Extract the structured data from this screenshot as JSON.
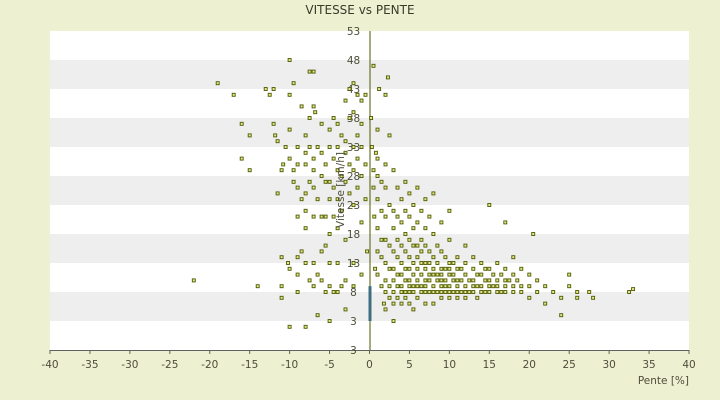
{
  "chart_data": {
    "type": "scatter",
    "title": "VITESSE vs PENTE",
    "xlabel": "Pente [%]",
    "ylabel": "Vitesse [km/h]",
    "xlim": [
      -40,
      40
    ],
    "ylim": [
      -2,
      53
    ],
    "x_ticks": [
      "-40",
      "-35",
      "-30",
      "-25",
      "-20",
      "-15",
      "-10",
      "-5",
      "0",
      "5",
      "10",
      "15",
      "20",
      "25",
      "30",
      "35",
      "40"
    ],
    "y_ticks": [
      "3",
      "3",
      "8",
      "13",
      "18",
      "23",
      "28",
      "33",
      "38",
      "43",
      "48",
      "53"
    ],
    "grid": "horizontal bands",
    "colors": {
      "marker_fill": "#e6e68a",
      "marker_edge": "#4d5a00",
      "band": "#eeeeee",
      "plot_bg": "#ffffff",
      "page_bg": "#eef0d2",
      "zero_axis": "#4d5a00",
      "bar": "#3e6f80"
    },
    "points": [
      [
        -22,
        10
      ],
      [
        -19,
        44
      ],
      [
        -17,
        42
      ],
      [
        -16,
        37
      ],
      [
        -16,
        31
      ],
      [
        -15,
        35
      ],
      [
        -15,
        29
      ],
      [
        -14,
        9
      ],
      [
        -13,
        43
      ],
      [
        -12.5,
        42
      ],
      [
        -12,
        43
      ],
      [
        -12,
        37
      ],
      [
        -11.8,
        35
      ],
      [
        -11.5,
        34
      ],
      [
        -11.5,
        25
      ],
      [
        -11,
        29
      ],
      [
        -11,
        14
      ],
      [
        -11,
        9
      ],
      [
        -11,
        7
      ],
      [
        -10.8,
        30
      ],
      [
        -10.5,
        33
      ],
      [
        -10.2,
        13
      ],
      [
        -10,
        48
      ],
      [
        -10,
        42
      ],
      [
        -10,
        36
      ],
      [
        -10,
        31
      ],
      [
        -10,
        12
      ],
      [
        -10,
        2
      ],
      [
        -9.5,
        44
      ],
      [
        -9.5,
        29
      ],
      [
        -9.5,
        27
      ],
      [
        -9,
        33
      ],
      [
        -9,
        30
      ],
      [
        -9,
        26
      ],
      [
        -9,
        21
      ],
      [
        -9,
        14
      ],
      [
        -9,
        11
      ],
      [
        -9,
        8
      ],
      [
        -8.5,
        40
      ],
      [
        -8.5,
        24
      ],
      [
        -8.5,
        15
      ],
      [
        -8,
        35
      ],
      [
        -8,
        32
      ],
      [
        -8,
        30
      ],
      [
        -8,
        25
      ],
      [
        -8,
        22
      ],
      [
        -8,
        19
      ],
      [
        -8,
        13
      ],
      [
        -8,
        2
      ],
      [
        -7.5,
        46
      ],
      [
        -7.5,
        38
      ],
      [
        -7.5,
        33
      ],
      [
        -7.5,
        27
      ],
      [
        -7.5,
        10
      ],
      [
        -7,
        46
      ],
      [
        -7,
        40
      ],
      [
        -7,
        31
      ],
      [
        -7,
        29
      ],
      [
        -7,
        26
      ],
      [
        -7,
        21
      ],
      [
        -7,
        13
      ],
      [
        -7,
        9
      ],
      [
        -6.8,
        39
      ],
      [
        -6.5,
        33
      ],
      [
        -6.5,
        24
      ],
      [
        -6.5,
        11
      ],
      [
        -6.5,
        4
      ],
      [
        -6,
        37
      ],
      [
        -6,
        32
      ],
      [
        -6,
        28
      ],
      [
        -6,
        21
      ],
      [
        -6,
        15
      ],
      [
        -6,
        10
      ],
      [
        -5.5,
        30
      ],
      [
        -5.5,
        27
      ],
      [
        -5.5,
        21
      ],
      [
        -5.5,
        16
      ],
      [
        -5.5,
        8
      ],
      [
        -5,
        36
      ],
      [
        -5,
        33
      ],
      [
        -5,
        27
      ],
      [
        -5,
        24
      ],
      [
        -5,
        18
      ],
      [
        -5,
        13
      ],
      [
        -5,
        9
      ],
      [
        -5,
        3
      ],
      [
        -4.5,
        38
      ],
      [
        -4.5,
        31
      ],
      [
        -4.5,
        26
      ],
      [
        -4.5,
        21
      ],
      [
        -4.5,
        8
      ],
      [
        -4,
        37
      ],
      [
        -4,
        33
      ],
      [
        -4,
        29
      ],
      [
        -4,
        24
      ],
      [
        -4,
        19
      ],
      [
        -4,
        13
      ],
      [
        -4,
        8
      ],
      [
        -3.5,
        35
      ],
      [
        -3.5,
        28
      ],
      [
        -3.5,
        22
      ],
      [
        -3.5,
        9
      ],
      [
        -3,
        41
      ],
      [
        -3,
        34
      ],
      [
        -3,
        32
      ],
      [
        -3,
        27
      ],
      [
        -3,
        17
      ],
      [
        -3,
        10
      ],
      [
        -3,
        5
      ],
      [
        -2.5,
        43
      ],
      [
        -2.5,
        38
      ],
      [
        -2.5,
        30
      ],
      [
        -2.5,
        25
      ],
      [
        -2,
        44
      ],
      [
        -2,
        39
      ],
      [
        -2,
        33
      ],
      [
        -2,
        29
      ],
      [
        -2,
        23
      ],
      [
        -2,
        13
      ],
      [
        -2,
        9
      ],
      [
        -1.5,
        42
      ],
      [
        -1.5,
        35
      ],
      [
        -1.5,
        31
      ],
      [
        -1.5,
        26
      ],
      [
        -1,
        41
      ],
      [
        -1,
        37
      ],
      [
        -1,
        33
      ],
      [
        -1,
        28
      ],
      [
        -1,
        20
      ],
      [
        -1,
        11
      ],
      [
        -0.5,
        42
      ],
      [
        -0.5,
        30
      ],
      [
        -0.5,
        24
      ],
      [
        -0.3,
        15
      ],
      [
        0.2,
        38
      ],
      [
        0.3,
        33
      ],
      [
        0.5,
        47
      ],
      [
        0.5,
        29
      ],
      [
        0.5,
        26
      ],
      [
        0.6,
        21
      ],
      [
        0.7,
        12
      ],
      [
        0.8,
        32
      ],
      [
        1,
        36
      ],
      [
        1,
        31
      ],
      [
        1,
        28
      ],
      [
        1,
        24
      ],
      [
        1,
        19
      ],
      [
        1,
        15
      ],
      [
        1,
        11
      ],
      [
        1.2,
        43
      ],
      [
        1.5,
        27
      ],
      [
        1.5,
        22
      ],
      [
        1.5,
        17
      ],
      [
        1.5,
        14
      ],
      [
        1.5,
        9
      ],
      [
        1.8,
        6
      ],
      [
        2,
        42
      ],
      [
        2,
        30
      ],
      [
        2,
        26
      ],
      [
        2,
        21
      ],
      [
        2,
        17
      ],
      [
        2,
        13
      ],
      [
        2,
        10
      ],
      [
        2,
        8
      ],
      [
        2,
        5
      ],
      [
        2.3,
        45
      ],
      [
        2.5,
        35
      ],
      [
        2.5,
        23
      ],
      [
        2.5,
        16
      ],
      [
        2.5,
        12
      ],
      [
        2.5,
        9
      ],
      [
        2.5,
        7
      ],
      [
        3,
        29
      ],
      [
        3,
        22
      ],
      [
        3,
        19
      ],
      [
        3,
        15
      ],
      [
        3,
        12
      ],
      [
        3,
        10
      ],
      [
        3,
        8
      ],
      [
        3,
        6
      ],
      [
        3,
        3
      ],
      [
        3.5,
        26
      ],
      [
        3.5,
        21
      ],
      [
        3.5,
        17
      ],
      [
        3.5,
        14
      ],
      [
        3.5,
        11
      ],
      [
        3.5,
        9
      ],
      [
        3.5,
        7
      ],
      [
        4,
        24
      ],
      [
        4,
        20
      ],
      [
        4,
        16
      ],
      [
        4,
        13
      ],
      [
        4,
        11
      ],
      [
        4,
        9
      ],
      [
        4,
        8
      ],
      [
        4,
        6
      ],
      [
        4.5,
        27
      ],
      [
        4.5,
        22
      ],
      [
        4.5,
        18
      ],
      [
        4.5,
        15
      ],
      [
        4.5,
        12
      ],
      [
        4.5,
        10
      ],
      [
        4.5,
        8
      ],
      [
        4.5,
        7
      ],
      [
        5,
        25
      ],
      [
        5,
        21
      ],
      [
        5,
        17
      ],
      [
        5,
        14
      ],
      [
        5,
        12
      ],
      [
        5,
        10
      ],
      [
        5,
        9
      ],
      [
        5,
        8
      ],
      [
        5,
        6
      ],
      [
        5.5,
        23
      ],
      [
        5.5,
        19
      ],
      [
        5.5,
        16
      ],
      [
        5.5,
        13
      ],
      [
        5.5,
        11
      ],
      [
        5.5,
        9
      ],
      [
        5.5,
        8
      ],
      [
        5.5,
        5
      ],
      [
        6,
        26
      ],
      [
        6,
        20
      ],
      [
        6,
        16
      ],
      [
        6,
        14
      ],
      [
        6,
        12
      ],
      [
        6,
        10
      ],
      [
        6,
        9
      ],
      [
        6,
        7
      ],
      [
        6.5,
        22
      ],
      [
        6.5,
        17
      ],
      [
        6.5,
        15
      ],
      [
        6.5,
        13
      ],
      [
        6.5,
        11
      ],
      [
        6.5,
        9
      ],
      [
        6.5,
        8
      ],
      [
        7,
        24
      ],
      [
        7,
        19
      ],
      [
        7,
        16
      ],
      [
        7,
        13
      ],
      [
        7,
        12
      ],
      [
        7,
        10
      ],
      [
        7,
        9
      ],
      [
        7,
        8
      ],
      [
        7,
        6
      ],
      [
        7.5,
        21
      ],
      [
        7.5,
        15
      ],
      [
        7.5,
        13
      ],
      [
        7.5,
        11
      ],
      [
        7.5,
        10
      ],
      [
        7.5,
        8
      ],
      [
        8,
        25
      ],
      [
        8,
        18
      ],
      [
        8,
        14
      ],
      [
        8,
        12
      ],
      [
        8,
        11
      ],
      [
        8,
        9
      ],
      [
        8,
        8
      ],
      [
        8,
        6
      ],
      [
        8.5,
        16
      ],
      [
        8.5,
        13
      ],
      [
        8.5,
        11
      ],
      [
        8.5,
        10
      ],
      [
        8.5,
        8
      ],
      [
        9,
        20
      ],
      [
        9,
        15
      ],
      [
        9,
        12
      ],
      [
        9,
        11
      ],
      [
        9,
        10
      ],
      [
        9,
        9
      ],
      [
        9,
        8
      ],
      [
        9,
        7
      ],
      [
        9.5,
        14
      ],
      [
        9.5,
        12
      ],
      [
        9.5,
        10
      ],
      [
        9.5,
        9
      ],
      [
        9.5,
        8
      ],
      [
        10,
        22
      ],
      [
        10,
        17
      ],
      [
        10,
        13
      ],
      [
        10,
        12
      ],
      [
        10,
        11
      ],
      [
        10,
        9
      ],
      [
        10,
        8
      ],
      [
        10,
        7
      ],
      [
        10.5,
        13
      ],
      [
        10.5,
        11
      ],
      [
        10.5,
        10
      ],
      [
        10.5,
        8
      ],
      [
        11,
        14
      ],
      [
        11,
        12
      ],
      [
        11,
        10
      ],
      [
        11,
        9
      ],
      [
        11,
        8
      ],
      [
        11,
        7
      ],
      [
        11.5,
        12
      ],
      [
        11.5,
        10
      ],
      [
        11.5,
        8
      ],
      [
        12,
        16
      ],
      [
        12,
        13
      ],
      [
        12,
        11
      ],
      [
        12,
        9
      ],
      [
        12,
        8
      ],
      [
        12,
        7
      ],
      [
        12.5,
        10
      ],
      [
        12.5,
        8
      ],
      [
        13,
        14
      ],
      [
        13,
        12
      ],
      [
        13,
        10
      ],
      [
        13,
        9
      ],
      [
        13,
        8
      ],
      [
        13.5,
        11
      ],
      [
        13.5,
        9
      ],
      [
        13.5,
        7
      ],
      [
        14,
        13
      ],
      [
        14,
        11
      ],
      [
        14,
        9
      ],
      [
        14,
        8
      ],
      [
        14.5,
        12
      ],
      [
        14.5,
        10
      ],
      [
        14.5,
        8
      ],
      [
        15,
        23
      ],
      [
        15,
        12
      ],
      [
        15,
        10
      ],
      [
        15,
        9
      ],
      [
        15,
        8
      ],
      [
        15.5,
        11
      ],
      [
        15.5,
        9
      ],
      [
        16,
        13
      ],
      [
        16,
        10
      ],
      [
        16,
        9
      ],
      [
        16,
        8
      ],
      [
        16.5,
        11
      ],
      [
        16.5,
        8
      ],
      [
        17,
        20
      ],
      [
        17,
        12
      ],
      [
        17,
        10
      ],
      [
        17,
        9
      ],
      [
        17,
        8
      ],
      [
        17.5,
        10
      ],
      [
        18,
        14
      ],
      [
        18,
        11
      ],
      [
        18,
        9
      ],
      [
        18,
        8
      ],
      [
        18.5,
        10
      ],
      [
        19,
        12
      ],
      [
        19,
        9
      ],
      [
        19,
        8
      ],
      [
        20,
        11
      ],
      [
        20,
        9
      ],
      [
        20,
        7
      ],
      [
        20.5,
        18
      ],
      [
        21,
        10
      ],
      [
        21,
        8
      ],
      [
        22,
        9
      ],
      [
        22,
        6
      ],
      [
        23,
        8
      ],
      [
        24,
        4
      ],
      [
        24,
        7
      ],
      [
        25,
        11
      ],
      [
        25,
        9
      ],
      [
        26,
        8
      ],
      [
        26,
        7
      ],
      [
        27.5,
        8
      ],
      [
        28,
        7
      ],
      [
        32.5,
        8
      ],
      [
        33,
        8.5
      ]
    ],
    "bars": [
      {
        "x": 0,
        "y_from": 3,
        "y_to": 9
      }
    ]
  }
}
